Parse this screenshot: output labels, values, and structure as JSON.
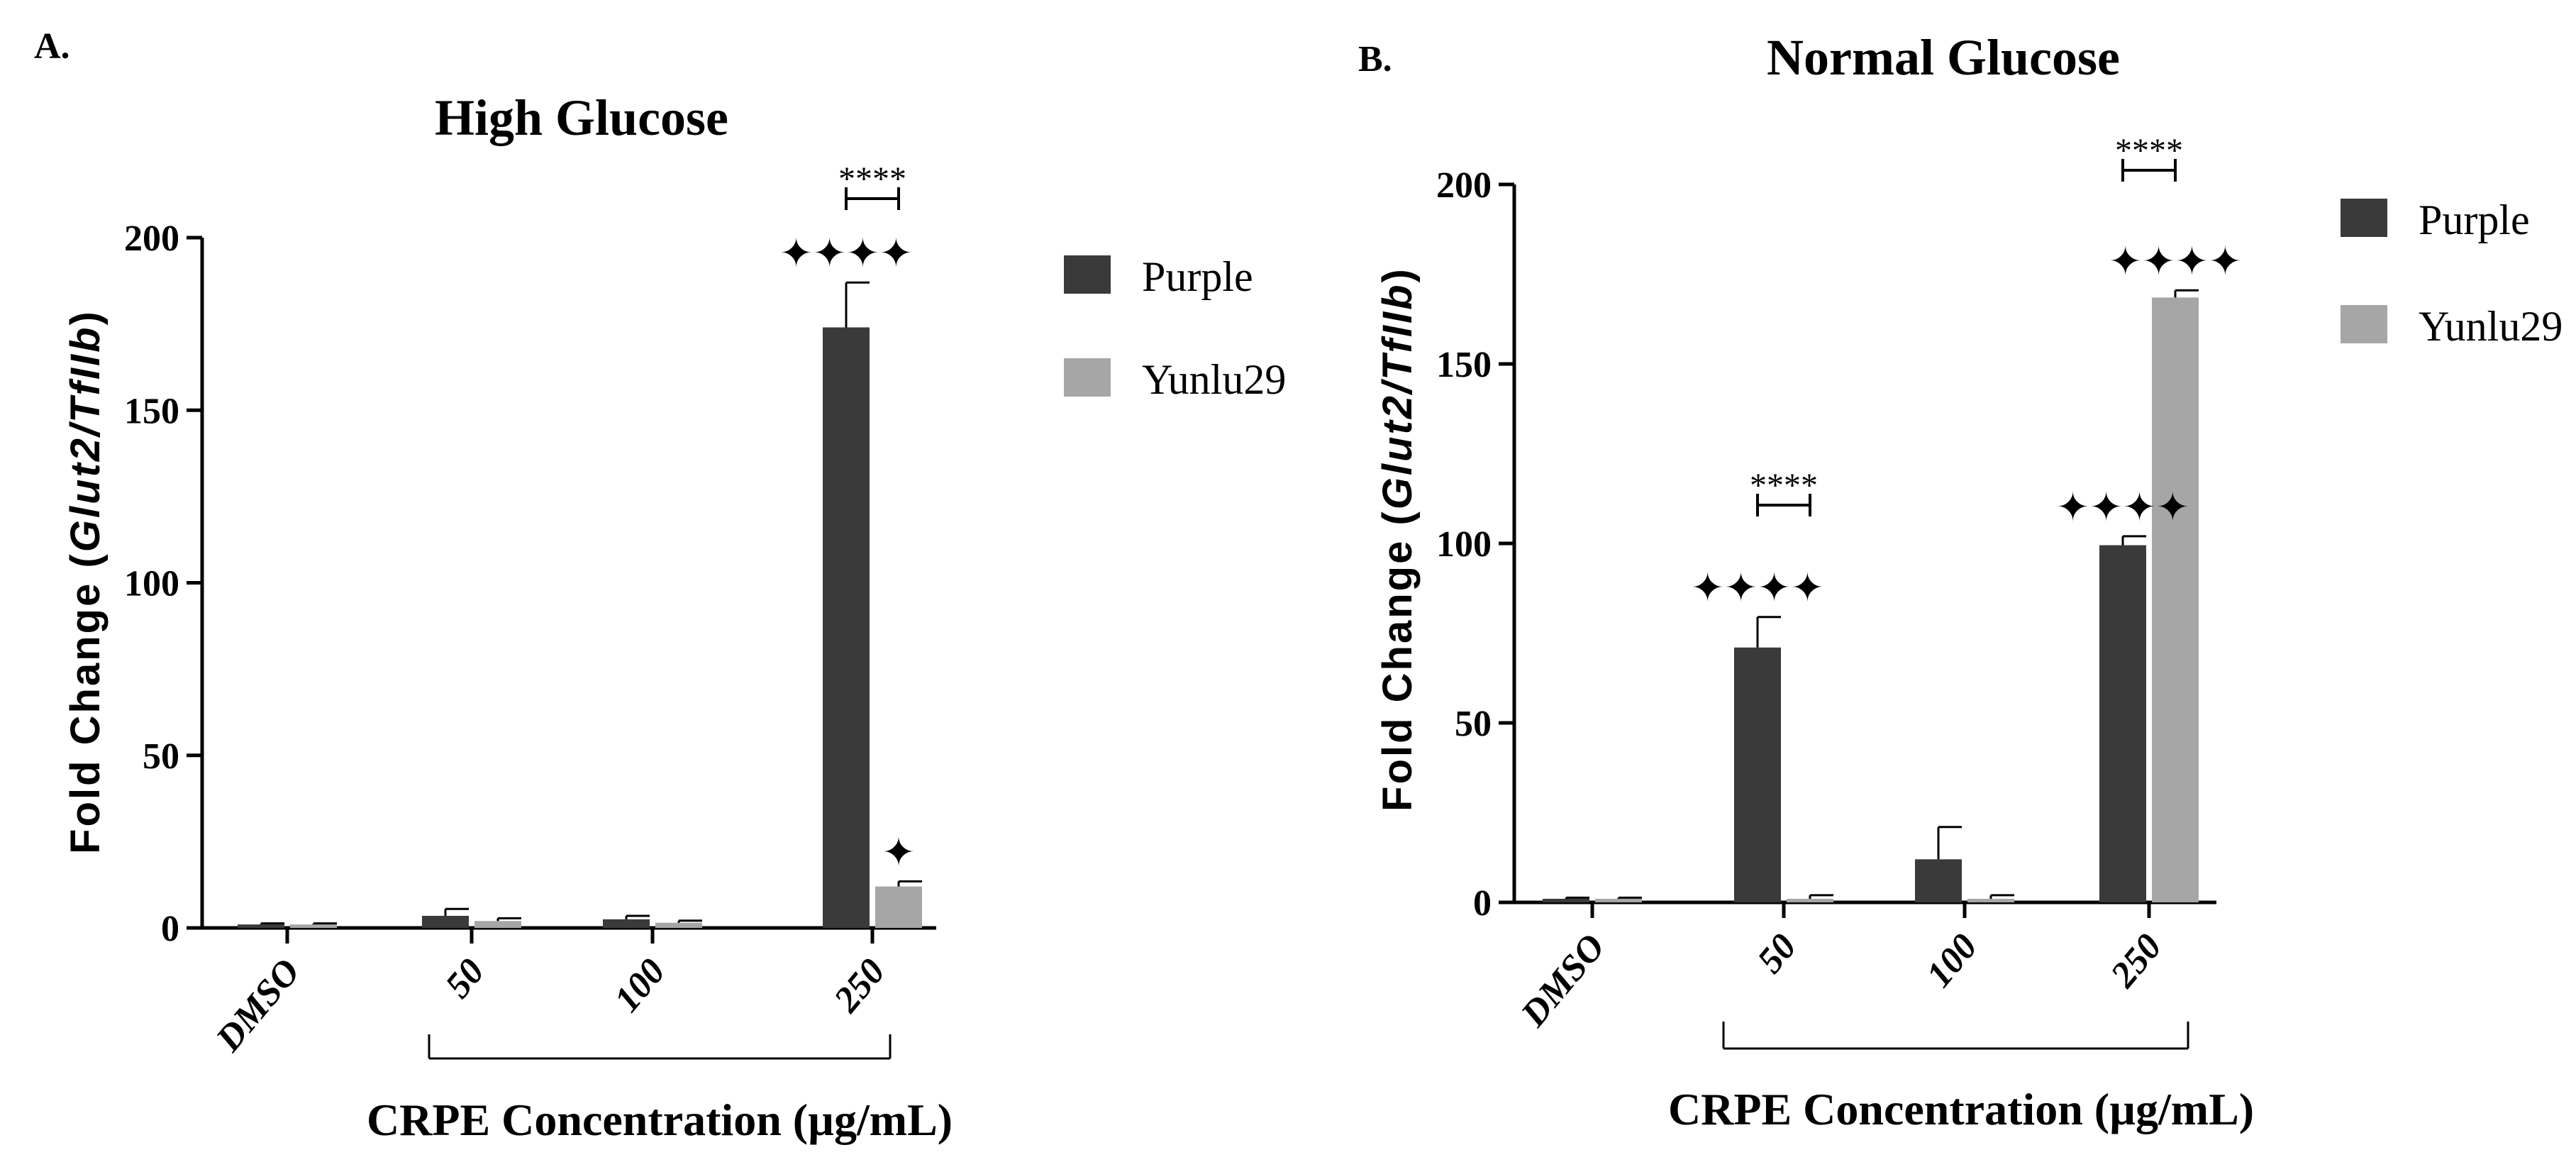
{
  "colors": {
    "purple": "#3a3a3a",
    "yunlu29": "#a6a6a6",
    "axis": "#000000"
  },
  "chart_data": [
    {
      "type": "bar",
      "panel_label": "A.",
      "title": "High Glucose",
      "ylabel": "Fold Change (",
      "ylabel_gene": "Glut2/TfIIb",
      "ylabel_end": ")",
      "xlabel": "CRPE Concentration (µg/mL)",
      "categories": [
        "DMSO",
        "50",
        "100",
        "250"
      ],
      "ylim": [
        0,
        200
      ],
      "yticks": [
        0,
        50,
        100,
        150,
        200
      ],
      "series": [
        {
          "name": "Purple",
          "values": [
            1,
            3.5,
            2.5,
            174
          ],
          "errors": [
            0.3,
            2,
            1,
            13
          ]
        },
        {
          "name": "Yunlu29",
          "values": [
            1,
            2,
            1.5,
            12
          ],
          "errors": [
            0.3,
            0.8,
            0.6,
            1.5
          ]
        }
      ],
      "annotations": [
        {
          "text": "✦✦✦✦",
          "category": 3,
          "series": 0
        },
        {
          "text": "✦",
          "category": 3,
          "series": 1
        }
      ],
      "brackets": [
        {
          "text": "****",
          "category": 3
        }
      ],
      "legend": [
        "Purple",
        "Yunlu29"
      ]
    },
    {
      "type": "bar",
      "panel_label": "B.",
      "title": "Normal Glucose",
      "ylabel": "Fold Change (",
      "ylabel_gene": "Glut2/TfIIb",
      "ylabel_end": ")",
      "xlabel": "CRPE Concentration (µg/mL)",
      "categories": [
        "DMSO",
        "50",
        "100",
        "250"
      ],
      "ylim": [
        0,
        200
      ],
      "yticks": [
        0,
        50,
        100,
        150,
        200
      ],
      "series": [
        {
          "name": "Purple",
          "values": [
            1,
            71,
            12,
            99.5
          ],
          "errors": [
            0.3,
            8.5,
            9,
            2.5
          ]
        },
        {
          "name": "Yunlu29",
          "values": [
            1,
            1,
            1,
            168.5
          ],
          "errors": [
            0.3,
            1,
            1,
            2
          ]
        }
      ],
      "annotations": [
        {
          "text": "✦✦✦✦",
          "category": 1,
          "series": 0
        },
        {
          "text": "✦✦✦✦",
          "category": 3,
          "series": 0
        },
        {
          "text": "✦✦✦✦",
          "category": 3,
          "series": 1
        }
      ],
      "brackets": [
        {
          "text": "****",
          "category": 1
        },
        {
          "text": "****",
          "category": 3
        }
      ],
      "legend": [
        "Purple",
        "Yunlu29"
      ]
    }
  ]
}
